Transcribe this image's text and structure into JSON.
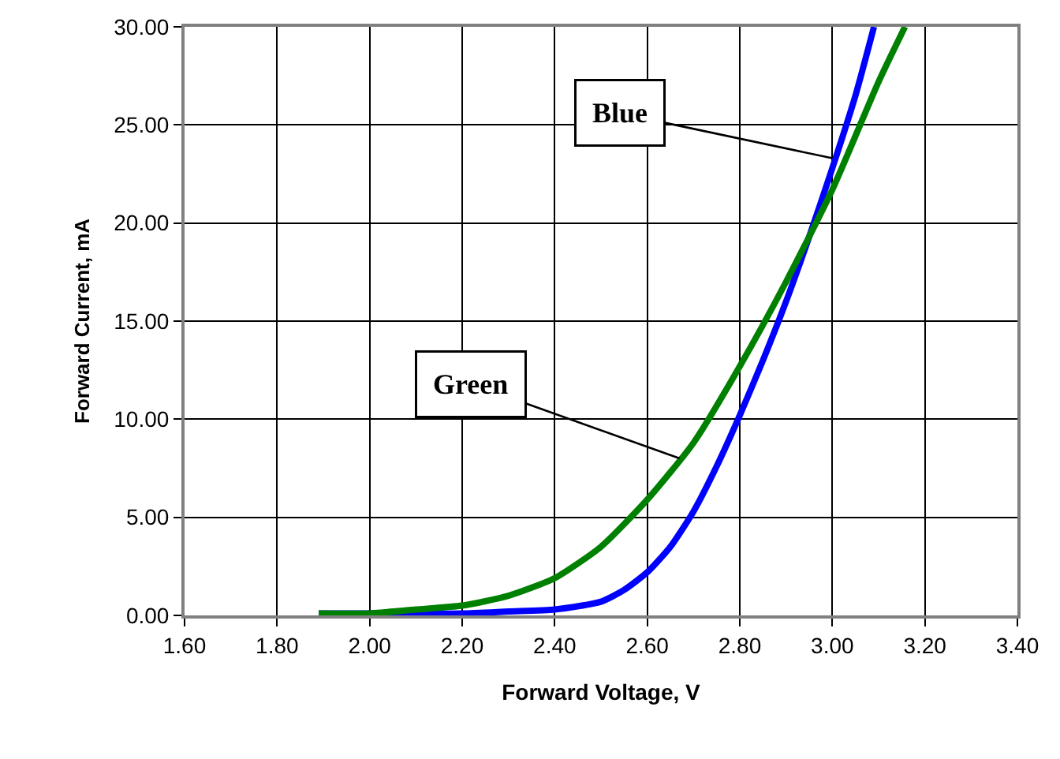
{
  "chart_data": {
    "type": "line",
    "xlabel": "Forward Voltage, V",
    "ylabel": "Forward Current, mA",
    "xlim": [
      1.6,
      3.4
    ],
    "ylim": [
      0,
      30
    ],
    "xticks": [
      {
        "value": 1.6,
        "label": "1.60"
      },
      {
        "value": 1.8,
        "label": "1.80"
      },
      {
        "value": 2.0,
        "label": "2.00"
      },
      {
        "value": 2.2,
        "label": "2.20"
      },
      {
        "value": 2.4,
        "label": "2.40"
      },
      {
        "value": 2.6,
        "label": "2.60"
      },
      {
        "value": 2.8,
        "label": "2.80"
      },
      {
        "value": 3.0,
        "label": "3.00"
      },
      {
        "value": 3.2,
        "label": "3.20"
      },
      {
        "value": 3.4,
        "label": "3.40"
      }
    ],
    "yticks": [
      {
        "value": 0,
        "label": "0.00"
      },
      {
        "value": 5,
        "label": "5.00"
      },
      {
        "value": 10,
        "label": "10.00"
      },
      {
        "value": 15,
        "label": "15.00"
      },
      {
        "value": 20,
        "label": "20.00"
      },
      {
        "value": 25,
        "label": "25.00"
      },
      {
        "value": 30,
        "label": "30.00"
      }
    ],
    "grid": true,
    "marker": "none",
    "line_style": "solid",
    "series": [
      {
        "color": "#0000ff",
        "x": [
          1.89,
          2.0,
          2.2,
          2.3,
          2.4,
          2.5,
          2.55,
          2.6,
          2.65,
          2.7,
          2.75,
          2.8,
          2.85,
          2.9,
          2.95,
          3.0,
          3.05,
          3.09
        ],
        "values": [
          0.1,
          0.1,
          0.1,
          0.2,
          0.3,
          0.7,
          1.3,
          2.2,
          3.5,
          5.3,
          7.6,
          10.2,
          13,
          16,
          19.3,
          22.8,
          26.5,
          30
        ]
      },
      {
        "color": "#008000",
        "x": [
          1.89,
          2.0,
          2.1,
          2.2,
          2.3,
          2.4,
          2.5,
          2.6,
          2.7,
          2.8,
          2.9,
          3.0,
          3.1,
          3.157
        ],
        "values": [
          0.1,
          0.1,
          0.3,
          0.5,
          1.0,
          1.9,
          3.5,
          5.9,
          8.8,
          12.7,
          17,
          21.7,
          27.2,
          30
        ]
      }
    ],
    "annotations": [
      {
        "text": "Blue",
        "x": 3.0,
        "y": 23.3
      },
      {
        "text": "Green",
        "x": 2.67,
        "y": 8
      }
    ]
  }
}
